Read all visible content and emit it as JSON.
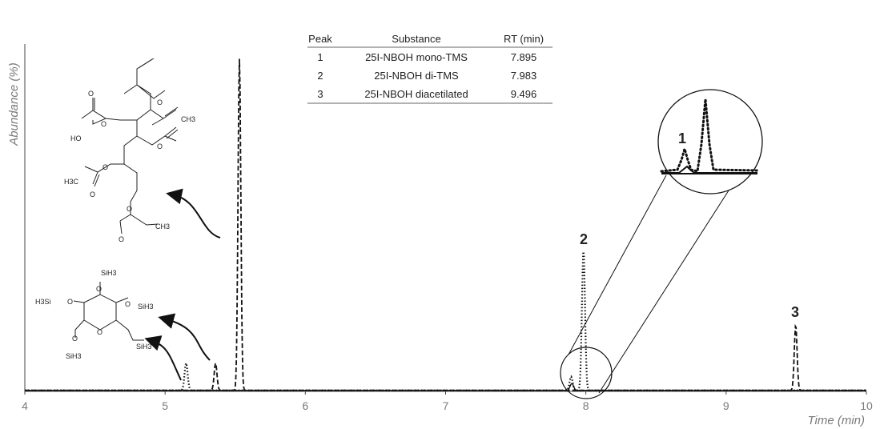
{
  "chart_data": {
    "type": "line",
    "xlabel": "Time (min)",
    "ylabel": "Abundance (%)",
    "xlim": [
      4,
      10
    ],
    "ylim": [
      0,
      100
    ],
    "xticks": [
      4,
      5,
      6,
      7,
      8,
      9,
      10
    ],
    "grid": false,
    "series": [
      {
        "style": "dotted",
        "peaks": [
          [
            5.15,
            8
          ],
          [
            7.895,
            4
          ],
          [
            7.983,
            41
          ]
        ]
      },
      {
        "style": "dashed",
        "peaks": [
          [
            5.36,
            8
          ],
          [
            5.53,
            97
          ],
          [
            9.496,
            19
          ]
        ]
      },
      {
        "style": "solid",
        "peaks": [
          [
            7.9,
            2
          ]
        ]
      }
    ],
    "peak_labels": [
      {
        "text": "2",
        "x": 7.983
      },
      {
        "text": "3",
        "x": 9.496
      },
      {
        "text": "1",
        "x": 7.895,
        "context": "inset"
      }
    ],
    "table": {
      "headers": [
        "Peak",
        "Substance",
        "RT (min)"
      ],
      "rows": [
        [
          "1",
          "25I-NBOH mono-TMS",
          "7.895"
        ],
        [
          "2",
          "25I-NBOH di-TMS",
          "7.983"
        ],
        [
          "3",
          "25I-NBOH diacetilated",
          "9.496"
        ]
      ]
    }
  },
  "molecules": {
    "acetylated_labels": [
      "HO",
      "O",
      "O",
      "O",
      "CH3",
      "O",
      "O",
      "H3C",
      "O",
      "O",
      "CH3",
      "O"
    ],
    "silyl_labels": [
      "SiH3",
      "H3Si",
      "O",
      "O",
      "SiH3",
      "O",
      "O",
      "SiH3",
      "O",
      "SiH3"
    ]
  }
}
